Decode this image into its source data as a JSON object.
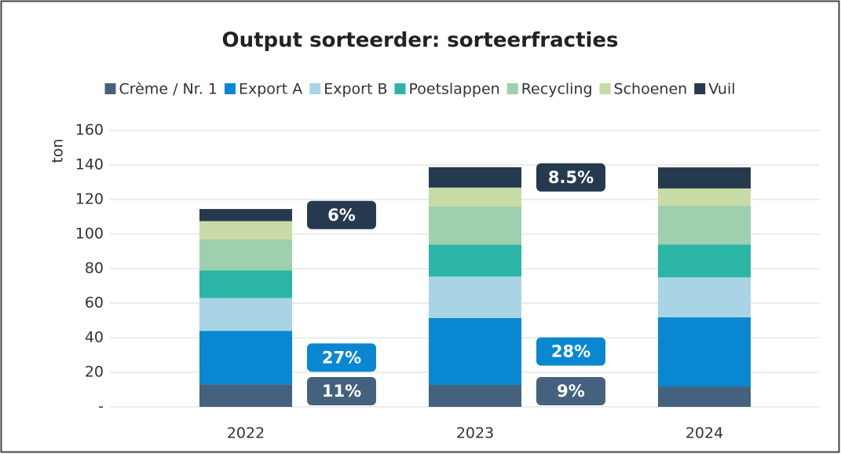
{
  "chart_data": {
    "type": "stacked_bar",
    "title": "Output sorteerder: sorteerfracties",
    "y_label": "ton",
    "categories": [
      "2022",
      "2023",
      "2024"
    ],
    "series": [
      {
        "name": "Crème / Nr. 1",
        "color": "#44627d",
        "values": [
          13,
          12.7,
          11.8
        ]
      },
      {
        "name": "Export A",
        "color": "#0a87d1",
        "values": [
          31,
          38.7,
          40
        ]
      },
      {
        "name": "Export B",
        "color": "#a8d4e6",
        "values": [
          19,
          24,
          23.2
        ]
      },
      {
        "name": "Poetslappen",
        "color": "#2bb5a5",
        "values": [
          16,
          18.5,
          19
        ]
      },
      {
        "name": "Recycling",
        "color": "#9ecfae",
        "values": [
          18,
          22,
          22.4
        ]
      },
      {
        "name": "Schoenen",
        "color": "#c9dba4",
        "values": [
          10.5,
          11,
          10
        ]
      },
      {
        "name": "Vuil",
        "color": "#263a4f",
        "values": [
          7,
          11.8,
          12.2
        ]
      }
    ],
    "annotations": [
      {
        "text": "11%",
        "series": "Crème / Nr. 1",
        "category": "2022"
      },
      {
        "text": "27%",
        "series": "Export A",
        "category": "2022"
      },
      {
        "text": "6%",
        "series": "Vuil",
        "category": "2022"
      },
      {
        "text": "9%",
        "series": "Crème / Nr. 1",
        "category": "2023"
      },
      {
        "text": "28%",
        "series": "Export A",
        "category": "2023"
      },
      {
        "text": "8.5%",
        "series": "Vuil",
        "category": "2023"
      }
    ],
    "ylim": [
      0,
      160
    ],
    "yticks": [
      {
        "value": 0,
        "label": "-"
      },
      20,
      40,
      60,
      80,
      100,
      120,
      140,
      160
    ],
    "grid": true,
    "legend": "top"
  }
}
